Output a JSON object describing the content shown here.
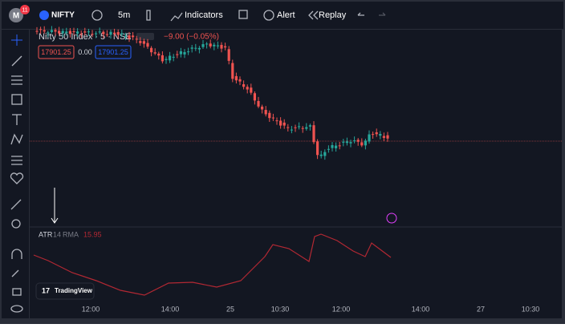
{
  "toolbar": {
    "avatar": "M",
    "badge": "11",
    "symbol": "NIFTY",
    "interval": "5m",
    "indicators": "Indicators",
    "alert": "Alert",
    "replay": "Replay"
  },
  "legend": {
    "title": "Nifty 50 Index · 5 · NSE",
    "change": "−9.00 (−0.05%)",
    "bid": "17901.25",
    "spread": "0.00",
    "ask": "17901.25"
  },
  "atr": {
    "name": "ATR",
    "length": "14",
    "smoothing": "RMA",
    "value": "15.95"
  },
  "logo": "TradingView",
  "time_axis": [
    "12:00",
    "14:00",
    "25",
    "10:30",
    "12:00",
    "14:00",
    "27",
    "10:30"
  ]
}
